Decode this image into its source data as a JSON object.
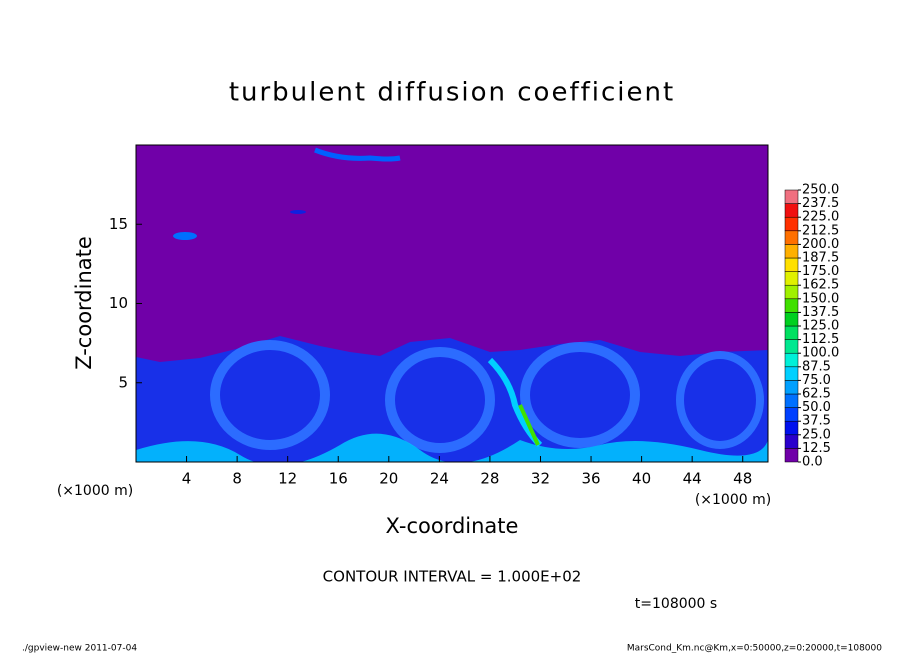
{
  "chart_data": {
    "type": "contour",
    "title": "turbulent diffusion coefficient",
    "xlabel": "X-coordinate",
    "ylabel": "Z-coordinate",
    "x_unit": "(×1000 m)",
    "xlim": [
      0,
      50
    ],
    "ylim": [
      0,
      20
    ],
    "xticks": [
      4,
      8,
      12,
      16,
      20,
      24,
      28,
      32,
      36,
      40,
      44,
      48
    ],
    "yticks": [
      5,
      10,
      15
    ],
    "levels": [
      {
        "value": 0,
        "label": "0.0"
      },
      {
        "value": 12.5,
        "label": "12.5"
      },
      {
        "value": 25,
        "label": "25.0"
      },
      {
        "value": 37.5,
        "label": "37.5"
      },
      {
        "value": 50,
        "label": "50.0"
      },
      {
        "value": 62.5,
        "label": "62.5"
      },
      {
        "value": 75,
        "label": "75.0"
      },
      {
        "value": 87.5,
        "label": "87.5"
      },
      {
        "value": 100,
        "label": "100.0"
      },
      {
        "value": 112.5,
        "label": "112.5"
      },
      {
        "value": 125,
        "label": "125.0"
      },
      {
        "value": 137.5,
        "label": "137.5"
      },
      {
        "value": 150,
        "label": "150.0"
      },
      {
        "value": 162.5,
        "label": "162.5"
      },
      {
        "value": 175,
        "label": "175.0"
      },
      {
        "value": 187.5,
        "label": "187.5"
      },
      {
        "value": 200,
        "label": "200.0"
      },
      {
        "value": 212.5,
        "label": "212.5"
      },
      {
        "value": 225,
        "label": "225.0"
      },
      {
        "value": 237.5,
        "label": "237.5"
      },
      {
        "value": 250,
        "label": "250.0"
      }
    ],
    "colors": [
      "#7000a8",
      "#2a00cc",
      "#0010ee",
      "#0040ff",
      "#0070ff",
      "#00a0ff",
      "#00d0ff",
      "#00f0d8",
      "#00e890",
      "#00e060",
      "#00d020",
      "#40e000",
      "#a0f000",
      "#e0f000",
      "#ffe000",
      "#ffb000",
      "#ff7000",
      "#ff3000",
      "#f01010",
      "#f07080"
    ],
    "contour_interval": "CONTOUR INTERVAL = 1.000E+02",
    "time_label": "t=108000 s",
    "footer_left": "./gpview-new  2011-07-04",
    "footer_right": "MarsCond_Km.nc@Km,x=0:50000,z=0:20000,t=108000"
  }
}
